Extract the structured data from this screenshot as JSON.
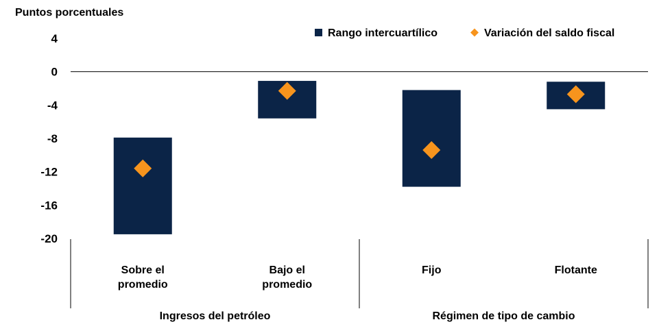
{
  "chart_data": {
    "type": "floating-bar-with-markers",
    "ylabel": "Puntos porcentuales",
    "ylim": [
      -20,
      4
    ],
    "yticks": [
      4,
      0,
      -4,
      -8,
      -12,
      -16,
      -20
    ],
    "grid": false,
    "legend_position": "top-right",
    "categories": [
      {
        "lines": [
          "Sobre el",
          "promedio"
        ],
        "group": 0
      },
      {
        "lines": [
          "Bajo el",
          "promedio"
        ],
        "group": 0
      },
      {
        "lines": [
          "Fijo"
        ],
        "group": 1
      },
      {
        "lines": [
          "Flotante"
        ],
        "group": 1
      }
    ],
    "groups": [
      "Ingresos del petróleo",
      "Régimen de tipo de cambio"
    ],
    "series": [
      {
        "name": "Rango intercuartílico",
        "kind": "range",
        "color": "#0b2447",
        "low": [
          -19.5,
          -5.6,
          -13.8,
          -4.5
        ],
        "high": [
          -7.9,
          -1.1,
          -2.2,
          -1.2
        ]
      },
      {
        "name": "Variación del saldo fiscal",
        "kind": "marker",
        "marker": "diamond",
        "color": "#f7941d",
        "values": [
          -11.6,
          -2.3,
          -9.4,
          -2.7
        ]
      }
    ]
  }
}
